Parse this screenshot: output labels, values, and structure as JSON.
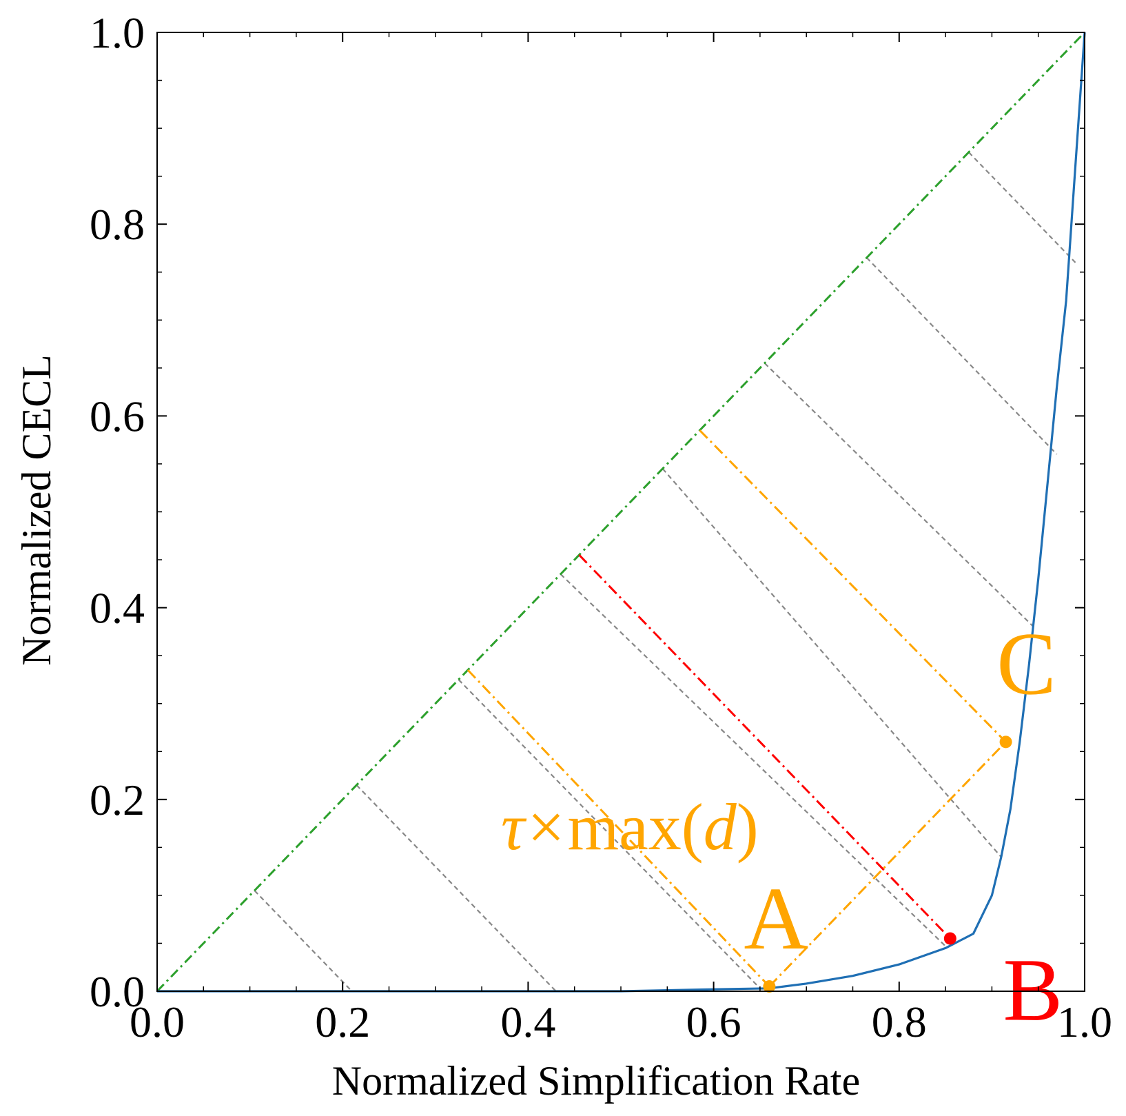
{
  "chart_data": {
    "type": "line",
    "xlabel": "Normalized Simplification Rate",
    "ylabel": "Normalized CECL",
    "xlim": [
      0.0,
      1.0
    ],
    "ylim": [
      0.0,
      1.0
    ],
    "xticks": [
      "0.0",
      "0.2",
      "0.4",
      "0.6",
      "0.8",
      "1.0"
    ],
    "yticks": [
      "0.0",
      "0.2",
      "0.4",
      "0.6",
      "0.8",
      "1.0"
    ],
    "grid": false,
    "colors": {
      "curve": "#1f6fb4",
      "diagonal": "#2ca02c",
      "hatch": "#888888",
      "highlight": "#ffa500",
      "best": "#ff0000"
    },
    "series": [
      {
        "x": [
          0.0,
          0.1,
          0.2,
          0.3,
          0.4,
          0.5,
          0.6,
          0.66,
          0.7,
          0.75,
          0.8,
          0.85,
          0.88,
          0.9,
          0.91,
          0.92,
          0.93,
          0.94,
          0.95,
          0.96,
          0.97,
          0.98,
          0.99,
          1.0
        ],
        "y": [
          0.0,
          0.0,
          0.0,
          0.0,
          0.0,
          0.0,
          0.002,
          0.003,
          0.008,
          0.016,
          0.028,
          0.045,
          0.06,
          0.1,
          0.14,
          0.19,
          0.26,
          0.34,
          0.43,
          0.53,
          0.63,
          0.72,
          0.86,
          1.0
        ]
      }
    ],
    "diagonal": {
      "x": [
        0.0,
        1.0
      ],
      "y": [
        0.0,
        1.0
      ]
    },
    "hatch_segments": [
      {
        "x1": 0.105,
        "y1": 0.105,
        "x2": 0.21,
        "y2": 0.0
      },
      {
        "x1": 0.215,
        "y1": 0.215,
        "x2": 0.43,
        "y2": 0.0
      },
      {
        "x1": 0.325,
        "y1": 0.325,
        "x2": 0.65,
        "y2": 0.003
      },
      {
        "x1": 0.435,
        "y1": 0.435,
        "x2": 0.85,
        "y2": 0.047
      },
      {
        "x1": 0.545,
        "y1": 0.545,
        "x2": 0.91,
        "y2": 0.14
      },
      {
        "x1": 0.655,
        "y1": 0.655,
        "x2": 0.945,
        "y2": 0.38
      },
      {
        "x1": 0.765,
        "y1": 0.765,
        "x2": 0.97,
        "y2": 0.56
      },
      {
        "x1": 0.875,
        "y1": 0.875,
        "x2": 0.99,
        "y2": 0.76
      }
    ],
    "highlight_segments": [
      {
        "x1": 0.335,
        "y1": 0.335,
        "x2": 0.66,
        "y2": 0.005
      },
      {
        "x1": 0.66,
        "y1": 0.005,
        "x2": 0.915,
        "y2": 0.26
      },
      {
        "x1": 0.585,
        "y1": 0.585,
        "x2": 0.915,
        "y2": 0.26
      }
    ],
    "best_segment": {
      "x1": 0.455,
      "y1": 0.455,
      "x2": 0.855,
      "y2": 0.055
    },
    "points": [
      {
        "label": "A",
        "x": 0.66,
        "y": 0.005,
        "color": "#ffa500"
      },
      {
        "label": "B",
        "x": 0.855,
        "y": 0.055,
        "color": "#ff0000"
      },
      {
        "label": "C",
        "x": 0.915,
        "y": 0.26,
        "color": "#ffa500"
      }
    ],
    "annotation_formula": {
      "tau": "τ",
      "times": "×",
      "max_open": "max(",
      "d": "d",
      "close": ")"
    }
  }
}
